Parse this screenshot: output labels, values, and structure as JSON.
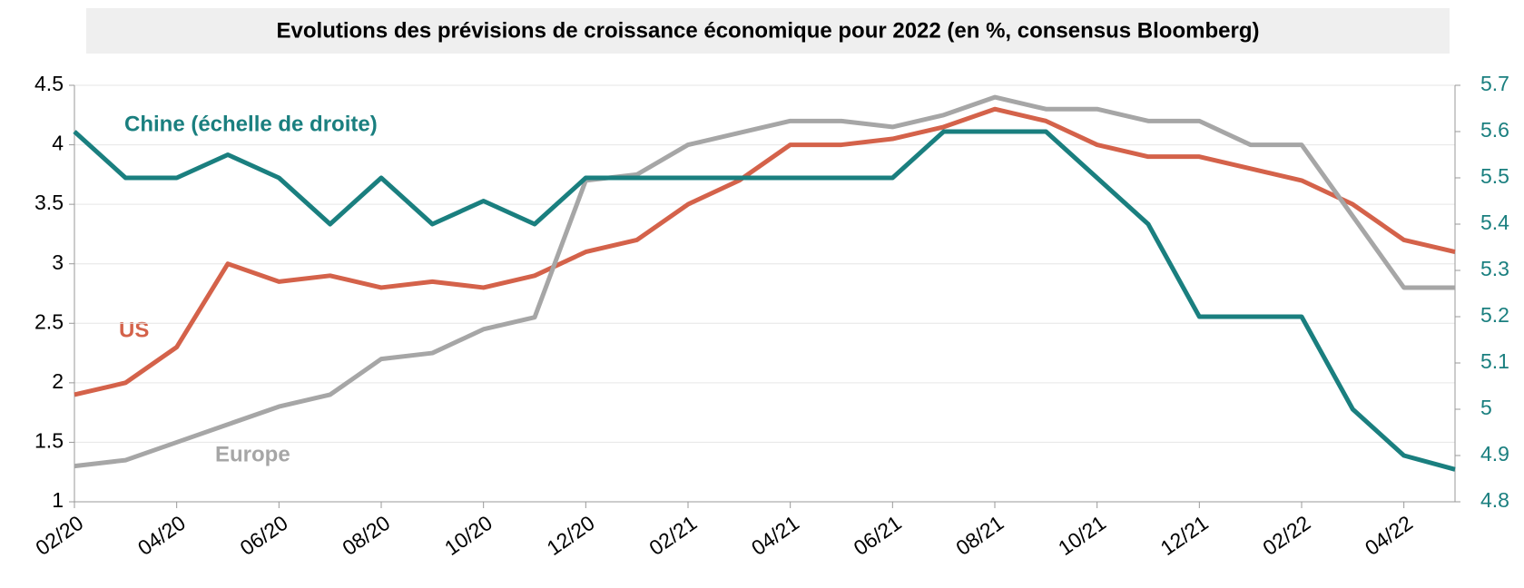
{
  "chart_data": {
    "type": "line",
    "title": "Evolutions des prévisions de croissance économique pour 2022 (en %, consensus Bloomberg)",
    "annotations": [
      "Chine (échelle de droite)",
      "US",
      "Europe"
    ],
    "categories": [
      "02/20",
      null,
      "04/20",
      null,
      "06/20",
      null,
      "08/20",
      null,
      "10/20",
      null,
      "12/20",
      null,
      "02/21",
      null,
      "04/21",
      null,
      "06/21",
      null,
      "08/21",
      null,
      "10/21",
      null,
      "12/21",
      null,
      "02/22",
      null,
      "04/22",
      null
    ],
    "series": [
      {
        "name": "US",
        "color": "#d4624a",
        "values": [
          1.9,
          2.0,
          2.3,
          3.0,
          2.85,
          2.9,
          2.8,
          2.85,
          2.8,
          2.9,
          3.1,
          3.2,
          3.5,
          3.7,
          4.0,
          4.0,
          4.05,
          4.15,
          4.3,
          4.2,
          4.0,
          3.9,
          3.9,
          3.8,
          3.7,
          3.5,
          3.2,
          3.1
        ]
      },
      {
        "name": "Europe",
        "color": "#a6a6a6",
        "values": [
          1.3,
          1.35,
          1.5,
          1.65,
          1.8,
          1.9,
          2.2,
          2.25,
          2.45,
          2.55,
          3.7,
          3.75,
          4.0,
          4.1,
          4.2,
          4.2,
          4.15,
          4.25,
          4.4,
          4.3,
          4.3,
          4.2,
          4.2,
          4.0,
          4.0,
          3.4,
          2.8,
          2.8
        ]
      },
      {
        "name": "Chine",
        "color": "#1a7f7f",
        "axis": "y2",
        "values": [
          5.6,
          5.5,
          5.5,
          5.55,
          5.5,
          5.4,
          5.5,
          5.4,
          5.45,
          5.4,
          5.5,
          5.5,
          5.5,
          5.5,
          5.5,
          5.5,
          5.5,
          5.6,
          5.6,
          5.6,
          5.5,
          5.4,
          5.2,
          5.2,
          5.2,
          5.0,
          4.9,
          4.87
        ]
      }
    ],
    "ylim": [
      1,
      4.5
    ],
    "yticks": [
      1,
      1.5,
      2,
      2.5,
      3,
      3.5,
      4,
      4.5
    ],
    "y2lim": [
      4.8,
      5.7
    ],
    "y2ticks": [
      4.8,
      4.9,
      5,
      5.1,
      5.2,
      5.3,
      5.4,
      5.5,
      5.6,
      5.7
    ],
    "grid": true
  }
}
